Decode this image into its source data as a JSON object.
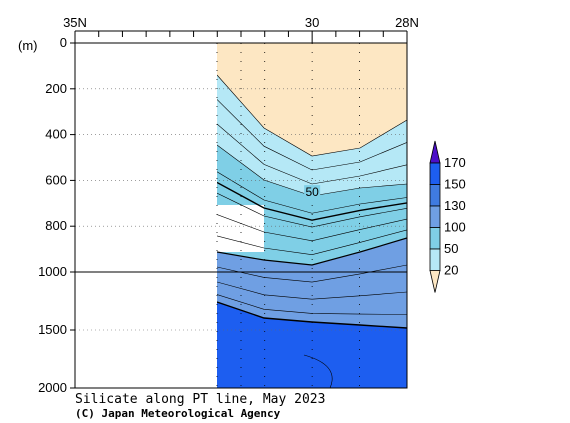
{
  "chart_data": {
    "type": "heatmap",
    "title": "Silicate along PT line, May 2023",
    "credit": "(C) Japan Meteorological Agency",
    "yunit": "(m)",
    "x_axis": {
      "range": [
        35,
        28
      ],
      "tick_labels": [
        {
          "lat": 35,
          "label": "35N"
        },
        {
          "lat": 30,
          "label": "30"
        },
        {
          "lat": 28,
          "label": "28N"
        }
      ],
      "minor_ticks": [
        34.5,
        34,
        33.5,
        33,
        32.5,
        32,
        31.5,
        31,
        30.5,
        29.5,
        29,
        28.5
      ]
    },
    "y_axis": {
      "upper": {
        "range": [
          0,
          1000
        ],
        "ticks": [
          0,
          200,
          400,
          600,
          800,
          1000
        ]
      },
      "lower": {
        "range": [
          1000,
          2000
        ],
        "ticks": [
          1500,
          2000
        ]
      }
    },
    "stations": [
      31.5,
      31,
      30,
      29
    ],
    "colorbar": {
      "levels": [
        "20",
        "50",
        "100",
        "130",
        "150",
        "170"
      ],
      "colors": [
        "#fde7c3",
        "#b5e8f6",
        "#7fcfe6",
        "#6f9fe3",
        "#3f7be0",
        "#1d5ef0",
        "#4b0fc8"
      ]
    },
    "contour_labels": [
      {
        "lat": 30,
        "depth": 660,
        "text": "50"
      }
    ],
    "grid": "dotted"
  },
  "icons": {
    "colorbar": "colorbar-icon"
  }
}
